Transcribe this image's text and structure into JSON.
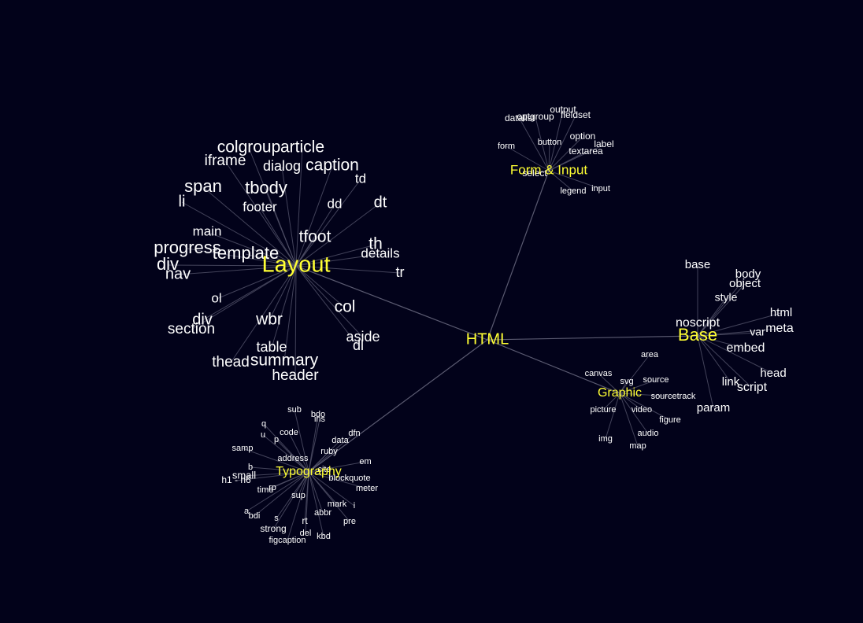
{
  "root": "HTML",
  "groups": [
    {
      "name": "Layout",
      "leaves": [
        "colgroup",
        "article",
        "iframe",
        "dialog",
        "caption",
        "td",
        "span",
        "tbody",
        "li",
        "footer",
        "dd",
        "dt",
        "main",
        "tfoot",
        "progress",
        "template",
        "th",
        "details",
        "div",
        "nav",
        "tr",
        "ol",
        "col",
        "div",
        "wbr",
        "section",
        "aside",
        "dl",
        "table",
        "thead",
        "summary",
        "header"
      ]
    },
    {
      "name": "Form & Input",
      "leaves": [
        "output",
        "datalist",
        "optgroup",
        "fieldset",
        "option",
        "form",
        "button",
        "label",
        "textarea",
        "select",
        "legend",
        "input"
      ]
    },
    {
      "name": "Base",
      "leaves": [
        "base",
        "body",
        "object",
        "style",
        "html",
        "noscript",
        "var",
        "meta",
        "embed",
        "head",
        "link",
        "script",
        "param"
      ]
    },
    {
      "name": "Graphic",
      "leaves": [
        "area",
        "canvas",
        "svg",
        "source",
        "sourcetrack",
        "picture",
        "video",
        "figure",
        "audio",
        "img",
        "map"
      ]
    },
    {
      "name": "Typography",
      "leaves": [
        "sub",
        "bdo",
        "ins",
        "q",
        "u",
        "code",
        "p",
        "data",
        "dfn",
        "samp",
        "ruby",
        "address",
        "em",
        "b",
        "small",
        "h1 - h6",
        "cite",
        "blockquote",
        "time",
        "rp",
        "meter",
        "sup",
        "mark",
        "i",
        "a",
        "abbr",
        "bdi",
        "s",
        "rt",
        "pre",
        "strong",
        "del",
        "kbd",
        "figcaption"
      ]
    }
  ]
}
